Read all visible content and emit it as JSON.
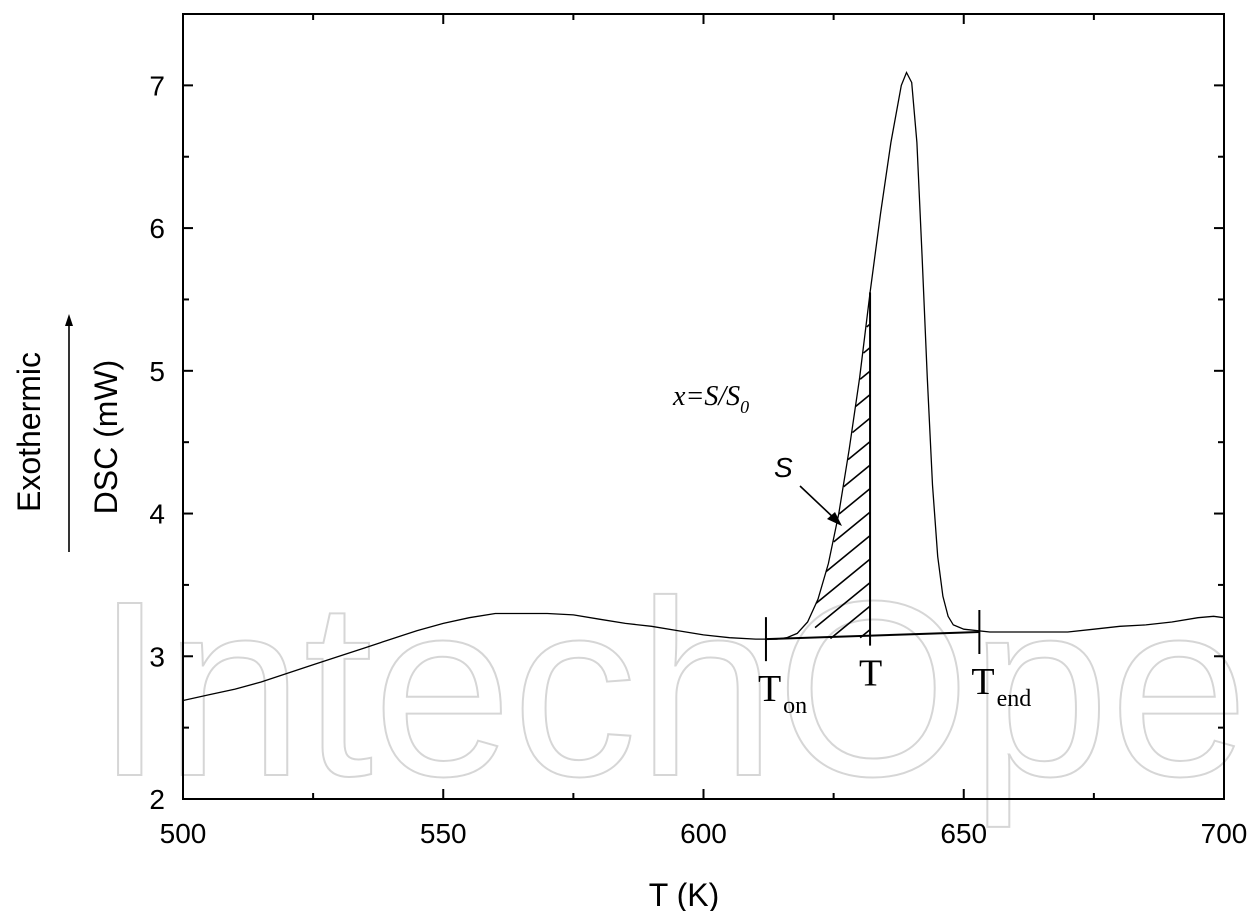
{
  "watermark": "IntechOpen",
  "chart_data": {
    "type": "line",
    "xlabel": "T (K)",
    "ylabel": "DSC (mW)",
    "side_label": "Exothermic",
    "xlim": [
      500,
      700
    ],
    "ylim": [
      2,
      7.5
    ],
    "x_ticks": [
      500,
      550,
      600,
      650,
      700
    ],
    "y_ticks": [
      2,
      3,
      4,
      5,
      6,
      7
    ],
    "grid": false,
    "series": [
      {
        "points": [
          [
            500,
            2.69
          ],
          [
            505,
            2.73
          ],
          [
            510,
            2.77
          ],
          [
            515,
            2.82
          ],
          [
            520,
            2.88
          ],
          [
            525,
            2.94
          ],
          [
            530,
            3.0
          ],
          [
            535,
            3.06
          ],
          [
            540,
            3.12
          ],
          [
            545,
            3.18
          ],
          [
            550,
            3.23
          ],
          [
            555,
            3.27
          ],
          [
            560,
            3.3
          ],
          [
            565,
            3.3
          ],
          [
            570,
            3.3
          ],
          [
            575,
            3.29
          ],
          [
            580,
            3.26
          ],
          [
            585,
            3.23
          ],
          [
            590,
            3.21
          ],
          [
            595,
            3.18
          ],
          [
            600,
            3.15
          ],
          [
            605,
            3.13
          ],
          [
            610,
            3.12
          ],
          [
            614,
            3.12
          ],
          [
            616,
            3.13
          ],
          [
            618,
            3.16
          ],
          [
            620,
            3.24
          ],
          [
            622,
            3.4
          ],
          [
            624,
            3.65
          ],
          [
            626,
            4.0
          ],
          [
            628,
            4.45
          ],
          [
            630,
            4.95
          ],
          [
            632,
            5.55
          ],
          [
            634,
            6.1
          ],
          [
            636,
            6.6
          ],
          [
            638,
            7.0
          ],
          [
            639,
            7.09
          ],
          [
            640,
            7.02
          ],
          [
            641,
            6.6
          ],
          [
            642,
            5.8
          ],
          [
            643,
            4.95
          ],
          [
            644,
            4.2
          ],
          [
            645,
            3.7
          ],
          [
            646,
            3.42
          ],
          [
            647,
            3.28
          ],
          [
            648,
            3.22
          ],
          [
            650,
            3.19
          ],
          [
            655,
            3.17
          ],
          [
            660,
            3.17
          ],
          [
            665,
            3.17
          ],
          [
            670,
            3.17
          ],
          [
            675,
            3.19
          ],
          [
            680,
            3.21
          ],
          [
            685,
            3.22
          ],
          [
            690,
            3.24
          ],
          [
            695,
            3.27
          ],
          [
            698,
            3.28
          ],
          [
            700,
            3.27
          ]
        ]
      }
    ],
    "baseline": {
      "from": [
        612,
        3.12
      ],
      "to": [
        653,
        3.17
      ]
    },
    "markers": {
      "T_on": {
        "x": 612,
        "label": "T",
        "sub": "on"
      },
      "T": {
        "x": 632,
        "label": "T"
      },
      "T_end": {
        "x": 653,
        "label": "T",
        "sub": "end"
      }
    },
    "shaded_region": {
      "x_from": 622,
      "x_to": 632,
      "label": "S"
    },
    "annotation_formula": {
      "x_part": "x",
      "eq": "=S/S",
      "sub": "0"
    }
  }
}
